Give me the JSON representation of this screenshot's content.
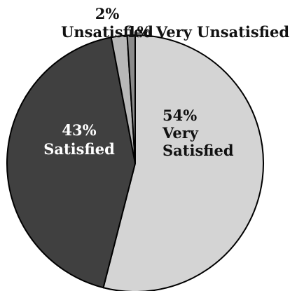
{
  "chart_data": {
    "type": "pie",
    "title": "",
    "slices": [
      {
        "pct": "54%",
        "name": "Very Satisfied",
        "lines": [
          "54%",
          "Very",
          "Satisfied"
        ],
        "value": 54,
        "color": "#d4d4d4",
        "text_color": "#111111"
      },
      {
        "pct": "43%",
        "name": "Satisfied",
        "lines": [
          "43%",
          "Satisfied"
        ],
        "value": 43,
        "color": "#404040",
        "text_color": "#ffffff"
      },
      {
        "pct": "2%",
        "name": "Unsatisfied",
        "lines": [
          "2%",
          "Unsatisfied"
        ],
        "value": 2,
        "color": "#b8b8b8",
        "text_color": "#111111"
      },
      {
        "pct": "1%",
        "name": "Very Unsatisfied",
        "lines": [
          "1% Very Unsatisfied"
        ],
        "value": 1,
        "color": "#8a8a8a",
        "text_color": "#111111"
      }
    ]
  }
}
